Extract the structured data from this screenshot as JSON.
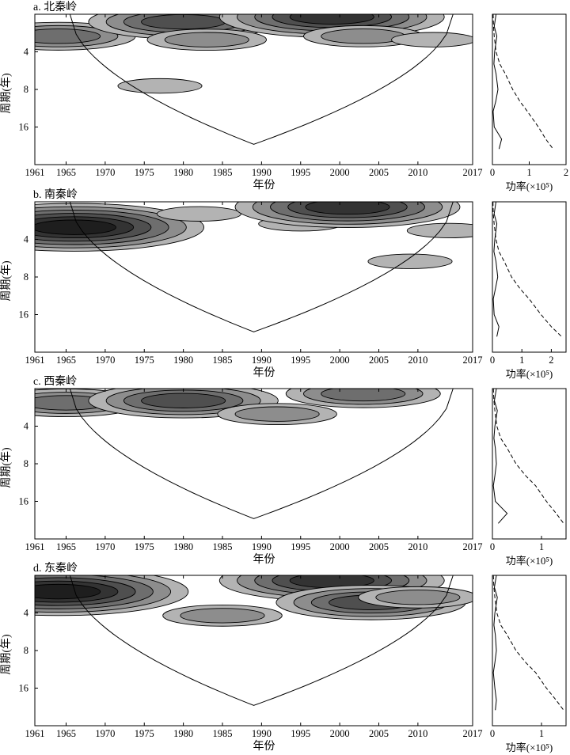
{
  "figure": {
    "tick_labels_x": [
      "1961",
      "1965",
      "1970",
      "1975",
      "1980",
      "1985",
      "1990",
      "1995",
      "2000",
      "2005",
      "2010",
      "2017"
    ],
    "tick_labels_y": [
      "4",
      "8",
      "16"
    ],
    "xlabel": "年份",
    "ylabel": "周期(年)",
    "power_xlabel": "功率(×10⁵)"
  },
  "chart_data": [
    {
      "type": "heatmap",
      "title": "a. 北秦岭",
      "x_range": [
        1961,
        2017
      ],
      "y_scale": "log2",
      "y_range": [
        2,
        32
      ],
      "y_ticks": [
        4,
        8,
        16
      ],
      "x_ticks": [
        1961,
        1965,
        1970,
        1975,
        1980,
        1985,
        1990,
        1995,
        2000,
        2005,
        2010,
        2017
      ],
      "cone_of_influence": true,
      "contour_centers": [
        {
          "year": 1964,
          "period": 3.0,
          "level": 3
        },
        {
          "year": 1980,
          "period": 2.3,
          "level": 4
        },
        {
          "year": 1983,
          "period": 3.2,
          "level": 2
        },
        {
          "year": 1977,
          "period": 7.5,
          "level": 1
        },
        {
          "year": 1999,
          "period": 2.1,
          "level": 5
        },
        {
          "year": 2003,
          "period": 3.0,
          "level": 2
        },
        {
          "year": 2012,
          "period": 3.2,
          "level": 1
        }
      ],
      "power_spectrum": {
        "xlim": [
          0,
          2
        ],
        "xticks": [
          0,
          1,
          2
        ],
        "periods": [
          2,
          2.5,
          3,
          4,
          5,
          6,
          8,
          10,
          12,
          16,
          20,
          24
        ],
        "power": [
          0.1,
          0.05,
          0.12,
          0.06,
          0.04,
          0.1,
          0.15,
          0.09,
          0.02,
          0.05,
          0.25,
          0.18
        ],
        "significance": [
          0.02,
          0.03,
          0.05,
          0.1,
          0.2,
          0.35,
          0.55,
          0.75,
          0.95,
          1.25,
          1.45,
          1.65
        ]
      }
    },
    {
      "type": "heatmap",
      "title": "b. 南秦岭",
      "x_range": [
        1961,
        2017
      ],
      "y_scale": "log2",
      "y_range": [
        2,
        32
      ],
      "y_ticks": [
        4,
        8,
        16
      ],
      "x_ticks": [
        1961,
        1965,
        1970,
        1975,
        1980,
        1985,
        1990,
        1995,
        2000,
        2005,
        2010,
        2017
      ],
      "cone_of_influence": true,
      "contour_centers": [
        {
          "year": 1966,
          "period": 3.2,
          "level": 6
        },
        {
          "year": 1982,
          "period": 2.5,
          "level": 1
        },
        {
          "year": 1995,
          "period": 3.0,
          "level": 1
        },
        {
          "year": 2001,
          "period": 2.2,
          "level": 5
        },
        {
          "year": 2009,
          "period": 6.0,
          "level": 1
        },
        {
          "year": 2014,
          "period": 3.4,
          "level": 1
        }
      ],
      "power_spectrum": {
        "xlim": [
          0,
          2.5
        ],
        "xticks": [
          0,
          1,
          2
        ],
        "periods": [
          2,
          2.5,
          3,
          4,
          5,
          6,
          8,
          10,
          12,
          16,
          20,
          24
        ],
        "power": [
          0.12,
          0.06,
          0.15,
          0.08,
          0.05,
          0.12,
          0.18,
          0.1,
          0.03,
          0.06,
          0.22,
          0.15
        ],
        "significance": [
          0.02,
          0.03,
          0.06,
          0.12,
          0.22,
          0.4,
          0.65,
          0.95,
          1.25,
          1.65,
          2.0,
          2.35
        ]
      }
    },
    {
      "type": "heatmap",
      "title": "c. 西秦岭",
      "x_range": [
        1961,
        2017
      ],
      "y_scale": "log2",
      "y_range": [
        2,
        32
      ],
      "y_ticks": [
        4,
        8,
        16
      ],
      "x_ticks": [
        1961,
        1965,
        1970,
        1975,
        1980,
        1985,
        1990,
        1995,
        2000,
        2005,
        2010,
        2017
      ],
      "cone_of_influence": true,
      "contour_centers": [
        {
          "year": 1965,
          "period": 2.6,
          "level": 3
        },
        {
          "year": 1980,
          "period": 2.5,
          "level": 4
        },
        {
          "year": 1992,
          "period": 3.2,
          "level": 2
        },
        {
          "year": 2003,
          "period": 2.2,
          "level": 3
        }
      ],
      "power_spectrum": {
        "xlim": [
          0,
          1.5
        ],
        "xticks": [
          0,
          1
        ],
        "periods": [
          2,
          2.5,
          3,
          4,
          5,
          6,
          8,
          10,
          12,
          16,
          20,
          24
        ],
        "power": [
          0.08,
          0.04,
          0.1,
          0.05,
          0.03,
          0.06,
          0.08,
          0.05,
          0.02,
          0.06,
          0.3,
          0.12
        ],
        "significance": [
          0.02,
          0.03,
          0.05,
          0.09,
          0.17,
          0.3,
          0.48,
          0.68,
          0.88,
          1.1,
          1.3,
          1.45
        ]
      }
    },
    {
      "type": "heatmap",
      "title": "d. 东秦岭",
      "x_range": [
        1961,
        2017
      ],
      "y_scale": "log2",
      "y_range": [
        2,
        32
      ],
      "y_ticks": [
        4,
        8,
        16
      ],
      "x_ticks": [
        1961,
        1965,
        1970,
        1975,
        1980,
        1985,
        1990,
        1995,
        2000,
        2005,
        2010,
        2017
      ],
      "cone_of_influence": true,
      "contour_centers": [
        {
          "year": 1964,
          "period": 2.7,
          "level": 6
        },
        {
          "year": 1985,
          "period": 4.2,
          "level": 2
        },
        {
          "year": 1999,
          "period": 2.2,
          "level": 5
        },
        {
          "year": 2004,
          "period": 3.3,
          "level": 4
        },
        {
          "year": 2010,
          "period": 3.0,
          "level": 2
        }
      ],
      "power_spectrum": {
        "xlim": [
          0,
          1.5
        ],
        "xticks": [
          0,
          1
        ],
        "periods": [
          2,
          2.5,
          3,
          4,
          5,
          6,
          8,
          10,
          12,
          16,
          20,
          24
        ],
        "power": [
          0.08,
          0.04,
          0.1,
          0.05,
          0.03,
          0.06,
          0.08,
          0.05,
          0.02,
          0.05,
          0.08,
          0.06
        ],
        "significance": [
          0.02,
          0.03,
          0.05,
          0.09,
          0.17,
          0.3,
          0.48,
          0.68,
          0.88,
          1.1,
          1.3,
          1.45
        ]
      }
    }
  ]
}
